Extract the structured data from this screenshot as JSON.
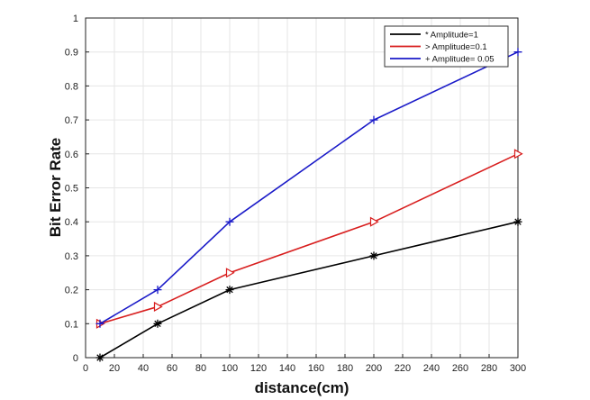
{
  "chart_data": {
    "type": "line",
    "title": "",
    "xlabel": "distance(cm)",
    "ylabel": "Bit Error Rate",
    "xlim": [
      0,
      300
    ],
    "ylim": [
      0,
      1
    ],
    "xticks": [
      0,
      20,
      40,
      60,
      80,
      100,
      120,
      140,
      160,
      180,
      200,
      220,
      240,
      260,
      280,
      300
    ],
    "yticks": [
      0,
      0.1,
      0.2,
      0.3,
      0.4,
      0.5,
      0.6,
      0.7,
      0.8,
      0.9,
      1
    ],
    "grid": true,
    "legend_position": "top-right",
    "x": [
      10,
      50,
      100,
      200,
      300
    ],
    "series": [
      {
        "name": "* Amplitude=1",
        "marker": "asterisk",
        "color": "#000000",
        "values": [
          0.0,
          0.1,
          0.2,
          0.3,
          0.4
        ]
      },
      {
        "name": "> Amplitude=0.1",
        "marker": "triangle-right",
        "color": "#d81e1e",
        "values": [
          0.1,
          0.15,
          0.25,
          0.4,
          0.6
        ]
      },
      {
        "name": "+ Amplitude= 0.05",
        "marker": "plus",
        "color": "#1a1ac8",
        "values": [
          0.1,
          0.2,
          0.4,
          0.7,
          0.9
        ]
      }
    ]
  }
}
